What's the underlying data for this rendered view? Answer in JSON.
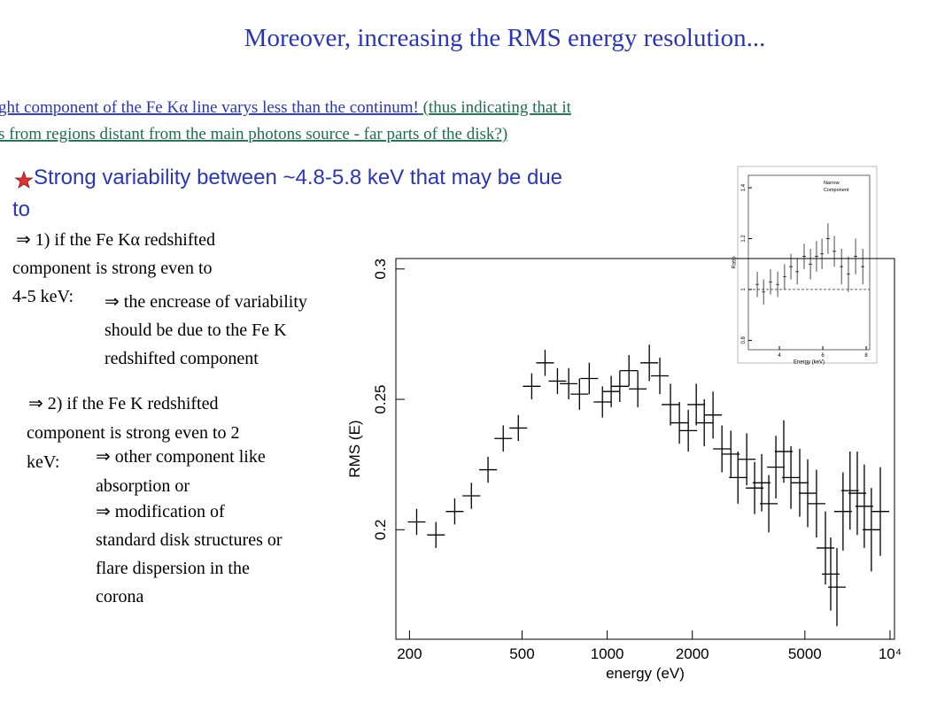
{
  "title": "Moreover, increasing the RMS energy resolution...",
  "intro": {
    "line1_a": "ght component of the Fe Kα  line varys less than the continum!",
    "line1_b": " (thus indicating that it ",
    "line2": "s from regions distant from the main photons source - far parts of the disk?)"
  },
  "blocks": [
    {
      "lines": [
        "Strong variability between ~4.8-5.8 keV that may be due",
        "to"
      ]
    },
    {
      "lines": [
        "⇒ 1) if the Fe Kα redshifted",
        "component is strong even to",
        "4-5 keV:"
      ]
    },
    {
      "lines": [
        "⇒ the encrease of variability",
        "should be due to the Fe K",
        "redshifted component"
      ]
    },
    {
      "lines": [
        "⇒ 2) if the Fe K redshifted",
        "component is strong even to 2",
        "keV:"
      ]
    },
    {
      "lines": [
        "⇒ other component like",
        "absorption or"
      ]
    },
    {
      "lines": [
        "⇒ modification of",
        "standard disk structures or",
        "flare dispersion in the",
        "corona"
      ]
    }
  ],
  "chart_data": [
    {
      "type": "scatter",
      "xlabel": "energy (eV)",
      "ylabel": "RMS (E)",
      "log_x": true,
      "color": "#000000",
      "x": [
        212,
        248,
        289,
        331,
        379,
        429,
        485,
        541,
        603,
        667,
        731,
        798,
        864,
        962,
        1033,
        1108,
        1194,
        1283,
        1409,
        1535,
        1674,
        1800,
        1935,
        2065,
        2204,
        2367,
        2545,
        2737,
        2899,
        3114,
        3321,
        3518,
        3727,
        3949,
        4210,
        4463,
        4794,
        5116,
        5495,
        5911,
        6170,
        6490,
        6820,
        7220,
        7660,
        8110,
        8590,
        9240
      ],
      "values": [
        0.203,
        0.198,
        0.207,
        0.213,
        0.223,
        0.235,
        0.239,
        0.255,
        0.264,
        0.257,
        0.256,
        0.252,
        0.258,
        0.249,
        0.253,
        0.255,
        0.261,
        0.254,
        0.264,
        0.259,
        0.248,
        0.241,
        0.238,
        0.248,
        0.241,
        0.244,
        0.231,
        0.229,
        0.22,
        0.227,
        0.216,
        0.218,
        0.21,
        0.224,
        0.23,
        0.22,
        0.218,
        0.214,
        0.21,
        0.193,
        0.183,
        0.178,
        0.207,
        0.215,
        0.214,
        0.209,
        0.2,
        0.207
      ],
      "yerr": [
        0.005,
        0.005,
        0.005,
        0.005,
        0.005,
        0.005,
        0.005,
        0.005,
        0.005,
        0.005,
        0.006,
        0.006,
        0.006,
        0.006,
        0.006,
        0.006,
        0.006,
        0.007,
        0.007,
        0.007,
        0.008,
        0.008,
        0.008,
        0.008,
        0.009,
        0.009,
        0.009,
        0.009,
        0.01,
        0.01,
        0.01,
        0.011,
        0.011,
        0.012,
        0.012,
        0.012,
        0.013,
        0.013,
        0.013,
        0.014,
        0.014,
        0.015,
        0.015,
        0.015,
        0.016,
        0.016,
        0.016,
        0.017
      ],
      "xlim": [
        179,
        10370
      ],
      "ylim": [
        0.158,
        0.304
      ],
      "xticks": [
        200,
        500,
        1000,
        2000,
        5000,
        {
          "value": 10000,
          "label": "10⁴"
        }
      ],
      "yticks": [
        0.2,
        0.25,
        0.3
      ]
    },
    {
      "type": "scatter",
      "xlabel": "Energy (keV)",
      "ylabel": "Ratio",
      "annotation": [
        "Narrow",
        "Component"
      ],
      "color": "#000000",
      "hline": 1,
      "x": [
        2.98,
        3.27,
        3.59,
        3.92,
        4.24,
        4.53,
        4.82,
        5.14,
        5.43,
        5.71,
        5.96,
        6.24,
        6.53,
        6.86,
        7.18,
        7.51,
        7.84
      ],
      "values": [
        1.02,
        0.99,
        1.03,
        1.02,
        1.05,
        1.09,
        1.07,
        1.13,
        1.1,
        1.13,
        1.14,
        1.2,
        1.15,
        1.09,
        1.06,
        1.13,
        1.09
      ],
      "yerr": [
        0.05,
        0.05,
        0.05,
        0.05,
        0.05,
        0.05,
        0.05,
        0.05,
        0.06,
        0.06,
        0.06,
        0.06,
        0.06,
        0.07,
        0.07,
        0.07,
        0.07
      ],
      "xlim": [
        2.57,
        8.16
      ],
      "ylim": [
        0.763,
        1.449
      ],
      "xticks": [
        4,
        6,
        8
      ],
      "yticks": [
        0.8,
        1,
        1.2,
        1.4
      ]
    }
  ]
}
